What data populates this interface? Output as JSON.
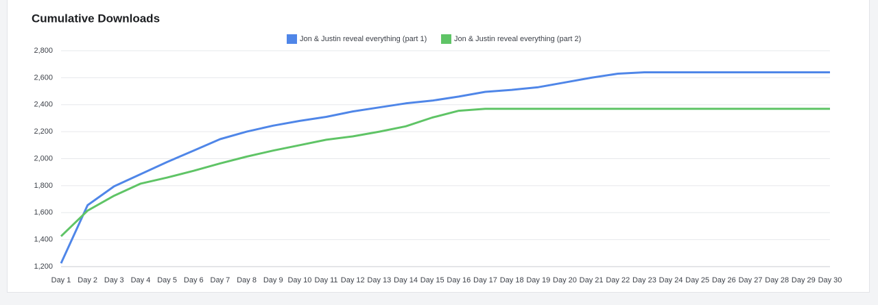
{
  "chart_data": {
    "type": "line",
    "title": "Cumulative Downloads",
    "categories": [
      "Day 1",
      "Day 2",
      "Day 3",
      "Day 4",
      "Day 5",
      "Day 6",
      "Day 7",
      "Day 8",
      "Day 9",
      "Day 10",
      "Day 11",
      "Day 12",
      "Day 13",
      "Day 14",
      "Day 15",
      "Day 16",
      "Day 17",
      "Day 18",
      "Day 19",
      "Day 20",
      "Day 21",
      "Day 22",
      "Day 23",
      "Day 24",
      "Day 25",
      "Day 26",
      "Day 27",
      "Day 28",
      "Day 29",
      "Day 30"
    ],
    "series": [
      {
        "name": "Jon & Justin reveal everything (part 1)",
        "color": "#4f86e8",
        "values": [
          1225,
          1655,
          1795,
          1885,
          1975,
          2060,
          2145,
          2200,
          2245,
          2280,
          2310,
          2350,
          2380,
          2410,
          2430,
          2460,
          2495,
          2510,
          2530,
          2565,
          2600,
          2630,
          2640,
          2640,
          2640,
          2640,
          2640,
          2640,
          2640,
          2640
        ]
      },
      {
        "name": "Jon & Justin reveal everything (part 2)",
        "color": "#5fc466",
        "values": [
          1425,
          1615,
          1725,
          1815,
          1860,
          1910,
          1965,
          2015,
          2060,
          2100,
          2140,
          2165,
          2200,
          2240,
          2305,
          2355,
          2370,
          2370,
          2370,
          2370,
          2370,
          2370,
          2370,
          2370,
          2370,
          2370,
          2370,
          2370,
          2370,
          2370
        ]
      }
    ],
    "ylim": [
      1200,
      2800
    ],
    "yticks": [
      {
        "value": 1200,
        "label": "1,200"
      },
      {
        "value": 1400,
        "label": "1,400"
      },
      {
        "value": 1600,
        "label": "1,600"
      },
      {
        "value": 1800,
        "label": "1,800"
      },
      {
        "value": 2000,
        "label": "2,000"
      },
      {
        "value": 2200,
        "label": "2,200"
      },
      {
        "value": 2400,
        "label": "2,400"
      },
      {
        "value": 2600,
        "label": "2,600"
      },
      {
        "value": 2800,
        "label": "2,800"
      }
    ],
    "grid": true,
    "legend": "top"
  }
}
